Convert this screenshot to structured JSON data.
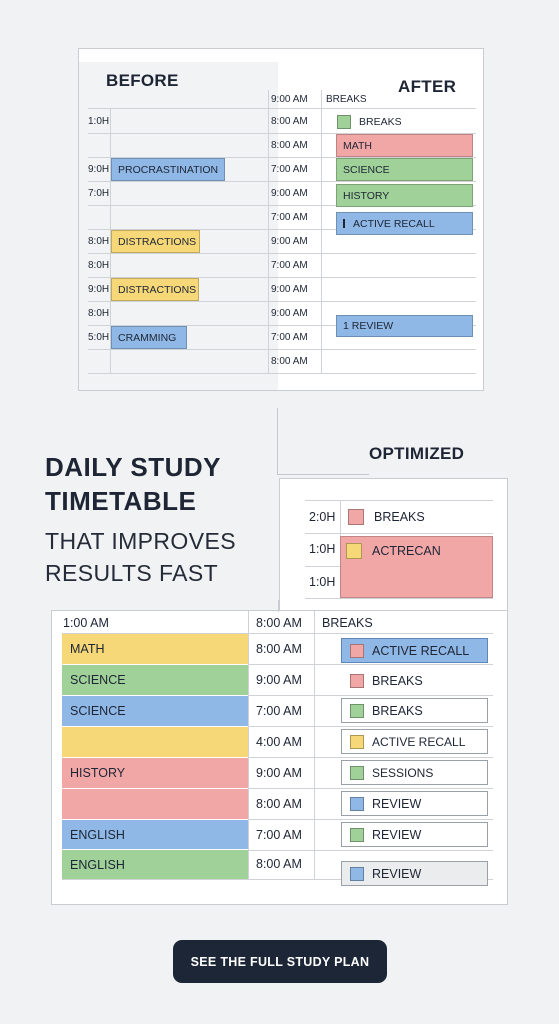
{
  "before": {
    "heading": "BEFORE",
    "rows": [
      {
        "time": "1:0H",
        "block": ""
      },
      {
        "time": "",
        "block": ""
      },
      {
        "time": "9:0H",
        "block": "PROCRASTINATION"
      },
      {
        "time": "7:0H",
        "block": ""
      },
      {
        "time": "",
        "block": ""
      },
      {
        "time": "8:0H",
        "block": "DISTRACTIONS"
      },
      {
        "time": "8:0H",
        "block": ""
      },
      {
        "time": "9:0H",
        "block": "DISTRACTIONS"
      },
      {
        "time": "8:0H",
        "block": ""
      },
      {
        "time": "5:0H",
        "block": "CRAMMING"
      }
    ]
  },
  "after": {
    "heading": "AFTER",
    "header_time": "9:00 AM",
    "header_label": "BREAKS",
    "times": [
      "8:00 AM",
      "8:00 AM",
      "7:00 AM",
      "9:00 AM",
      "7:00 AM",
      "9:00 AM",
      "7:00 AM",
      "9:00 AM",
      "9:00 AM",
      "7:00 AM",
      "8:00 AM"
    ],
    "items": {
      "breaks": "BREAKS",
      "math": "MATH",
      "science": "SCIENCE",
      "history": "HISTORY",
      "active_recall": "ACTIVE RECALL",
      "review": "1 REVIEW"
    }
  },
  "headline": {
    "title_line1": "DAILY STUDY",
    "title_line2": "TIMETABLE",
    "sub_line1": "THAT IMPROVES",
    "sub_line2": "RESULTS FAST"
  },
  "optimized": {
    "heading": "OPTIMIZED",
    "rows": [
      {
        "time": "2:0H",
        "label": "BREAKS"
      },
      {
        "time": "1:0H",
        "label": "ACTRECAN"
      },
      {
        "time": "1:0H",
        "label": ""
      }
    ]
  },
  "bottom": {
    "header_left": "1:00 AM",
    "header_mid": "8:00 AM",
    "header_right": "BREAKS",
    "subjects": [
      "MATH",
      "SCIENCE",
      "SCIENCE",
      "",
      "HISTORY",
      "",
      "ENGLISH",
      "ENGLISH"
    ],
    "times": [
      "8:00 AM",
      "9:00 AM",
      "7:00 AM",
      "4:00 AM",
      "9:00 AM",
      "8:00 AM",
      "7:00 AM",
      "8:00 AM"
    ],
    "items": [
      "ACTIVE RECALL",
      "BREAKS",
      "BREAKS",
      "ACTIVE RECALL",
      "SESSIONS",
      "REVIEW",
      "REVIEW",
      "REVIEW"
    ]
  },
  "cta": {
    "label": "SEE THE FULL STUDY PLAN"
  },
  "colors": {
    "blue": "#8fb8e6",
    "yellow": "#f6d878",
    "green": "#9fd198",
    "red": "#f2a7a7",
    "button": "#1d2637"
  }
}
